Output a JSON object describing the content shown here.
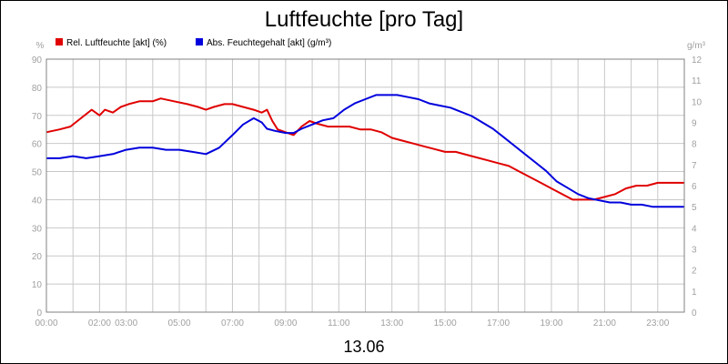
{
  "chart_data": {
    "type": "line",
    "title": "Luftfeuchte [pro Tag]",
    "date_label": "13.06",
    "y_left": {
      "unit": "%",
      "ylim": [
        0,
        90
      ],
      "ticks": [
        0,
        10,
        20,
        30,
        40,
        50,
        60,
        70,
        80,
        90
      ]
    },
    "y_right": {
      "unit": "g/m³",
      "ylim": [
        0,
        12
      ],
      "ticks": [
        0,
        1,
        2,
        3,
        4,
        5,
        6,
        7,
        8,
        9,
        10,
        11,
        12
      ]
    },
    "x_ticks": [
      "00:00",
      "02:00",
      "03:00",
      "05:00",
      "07:00",
      "09:00",
      "11:00",
      "13:00",
      "15:00",
      "17:00",
      "19:00",
      "21:00",
      "23:00"
    ],
    "x_range_hours": [
      0,
      24
    ],
    "grid": true,
    "legend_position": "top-left",
    "series": [
      {
        "name": "Rel. Luftfeuchte [akt] (%)",
        "axis": "left",
        "color": "#e00000",
        "x": [
          0,
          0.5,
          0.9,
          1.3,
          1.7,
          2.0,
          2.2,
          2.5,
          2.8,
          3.1,
          3.5,
          4.0,
          4.3,
          4.8,
          5.3,
          5.7,
          6.0,
          6.3,
          6.7,
          7.0,
          7.4,
          7.8,
          8.1,
          8.3,
          8.5,
          8.7,
          9.0,
          9.3,
          9.6,
          9.9,
          10.2,
          10.6,
          11.0,
          11.4,
          11.8,
          12.2,
          12.6,
          13.0,
          13.4,
          13.8,
          14.2,
          14.6,
          15.0,
          15.4,
          15.8,
          16.2,
          16.6,
          17.0,
          17.4,
          17.8,
          18.2,
          18.6,
          19.0,
          19.4,
          19.8,
          20.2,
          20.6,
          21.0,
          21.4,
          21.8,
          22.2,
          22.6,
          23.0,
          23.4,
          23.8,
          24.0
        ],
        "values": [
          64,
          65,
          66,
          69,
          72,
          70,
          72,
          71,
          73,
          74,
          75,
          75,
          76,
          75,
          74,
          73,
          72,
          73,
          74,
          74,
          73,
          72,
          71,
          72,
          68,
          65,
          64,
          63,
          66,
          68,
          67,
          66,
          66,
          66,
          65,
          65,
          64,
          62,
          61,
          60,
          59,
          58,
          57,
          57,
          56,
          55,
          54,
          53,
          52,
          50,
          48,
          46,
          44,
          42,
          40,
          40,
          40,
          41,
          42,
          44,
          45,
          45,
          46,
          46,
          46,
          46
        ]
      },
      {
        "name": "Abs. Feuchtegehalt [akt] (g/m³)",
        "axis": "right",
        "color": "#0000dd",
        "x": [
          0,
          0.5,
          1.0,
          1.5,
          2.0,
          2.5,
          3.0,
          3.5,
          4.0,
          4.5,
          5.0,
          5.5,
          6.0,
          6.5,
          7.0,
          7.4,
          7.8,
          8.1,
          8.3,
          8.6,
          9.0,
          9.3,
          9.6,
          10.0,
          10.4,
          10.8,
          11.2,
          11.6,
          12.0,
          12.4,
          12.8,
          13.2,
          13.6,
          14.0,
          14.4,
          14.8,
          15.2,
          15.6,
          16.0,
          16.4,
          16.8,
          17.2,
          17.6,
          18.0,
          18.4,
          18.8,
          19.2,
          19.6,
          20.0,
          20.4,
          20.8,
          21.2,
          21.6,
          22.0,
          22.4,
          22.8,
          23.2,
          23.6,
          24.0
        ],
        "values": [
          7.3,
          7.3,
          7.4,
          7.3,
          7.4,
          7.5,
          7.7,
          7.8,
          7.8,
          7.7,
          7.7,
          7.6,
          7.5,
          7.8,
          8.4,
          8.9,
          9.2,
          9.0,
          8.7,
          8.6,
          8.5,
          8.5,
          8.7,
          8.9,
          9.1,
          9.2,
          9.6,
          9.9,
          10.1,
          10.3,
          10.3,
          10.3,
          10.2,
          10.1,
          9.9,
          9.8,
          9.7,
          9.5,
          9.3,
          9.0,
          8.7,
          8.3,
          7.9,
          7.5,
          7.1,
          6.7,
          6.2,
          5.9,
          5.6,
          5.4,
          5.3,
          5.2,
          5.2,
          5.1,
          5.1,
          5.0,
          5.0,
          5.0,
          5.0
        ]
      }
    ]
  }
}
